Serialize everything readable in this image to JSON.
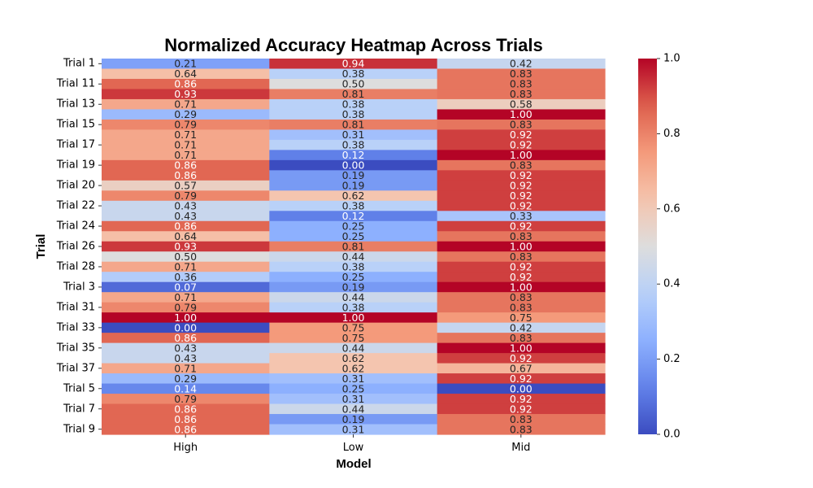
{
  "chart_data": {
    "type": "heatmap",
    "title": "Normalized Accuracy Heatmap Across Trials",
    "xlabel": "Model",
    "ylabel": "Trial",
    "columns": [
      "High",
      "Low",
      "Mid"
    ],
    "y_tick_labels": [
      "Trial 1",
      "Trial 11",
      "Trial 13",
      "Trial 15",
      "Trial 17",
      "Trial 19",
      "Trial 20",
      "Trial 22",
      "Trial 24",
      "Trial 26",
      "Trial 28",
      "Trial 3",
      "Trial 31",
      "Trial 33",
      "Trial 35",
      "Trial 37",
      "Trial 5",
      "Trial 7",
      "Trial 9"
    ],
    "row_count": 37,
    "colorbar": {
      "range": [
        0.0,
        1.0
      ],
      "ticks": [
        "0.0",
        "0.2",
        "0.4",
        "0.6",
        "0.8",
        "1.0"
      ],
      "colormap": "coolwarm"
    },
    "values": [
      [
        0.21,
        0.94,
        0.42
      ],
      [
        0.64,
        0.38,
        0.83
      ],
      [
        0.86,
        0.5,
        0.83
      ],
      [
        0.93,
        0.81,
        0.83
      ],
      [
        0.71,
        0.38,
        0.58
      ],
      [
        0.29,
        0.38,
        1.0
      ],
      [
        0.79,
        0.81,
        0.83
      ],
      [
        0.71,
        0.31,
        0.92
      ],
      [
        0.71,
        0.38,
        0.92
      ],
      [
        0.71,
        0.12,
        1.0
      ],
      [
        0.86,
        0.0,
        0.83
      ],
      [
        0.86,
        0.19,
        0.92
      ],
      [
        0.57,
        0.19,
        0.92
      ],
      [
        0.79,
        0.62,
        0.92
      ],
      [
        0.43,
        0.38,
        0.92
      ],
      [
        0.43,
        0.12,
        0.33
      ],
      [
        0.86,
        0.25,
        0.92
      ],
      [
        0.64,
        0.25,
        0.83
      ],
      [
        0.93,
        0.81,
        1.0
      ],
      [
        0.5,
        0.44,
        0.83
      ],
      [
        0.71,
        0.38,
        0.92
      ],
      [
        0.36,
        0.25,
        0.92
      ],
      [
        0.07,
        0.19,
        1.0
      ],
      [
        0.71,
        0.44,
        0.83
      ],
      [
        0.79,
        0.38,
        0.83
      ],
      [
        1.0,
        1.0,
        0.75
      ],
      [
        0.0,
        0.75,
        0.42
      ],
      [
        0.86,
        0.75,
        0.83
      ],
      [
        0.43,
        0.44,
        1.0
      ],
      [
        0.43,
        0.62,
        0.92
      ],
      [
        0.71,
        0.62,
        0.67
      ],
      [
        0.29,
        0.31,
        0.92
      ],
      [
        0.14,
        0.25,
        0.0
      ],
      [
        0.79,
        0.31,
        0.92
      ],
      [
        0.86,
        0.44,
        0.92
      ],
      [
        0.86,
        0.19,
        0.83
      ],
      [
        0.86,
        0.31,
        0.83
      ]
    ]
  }
}
